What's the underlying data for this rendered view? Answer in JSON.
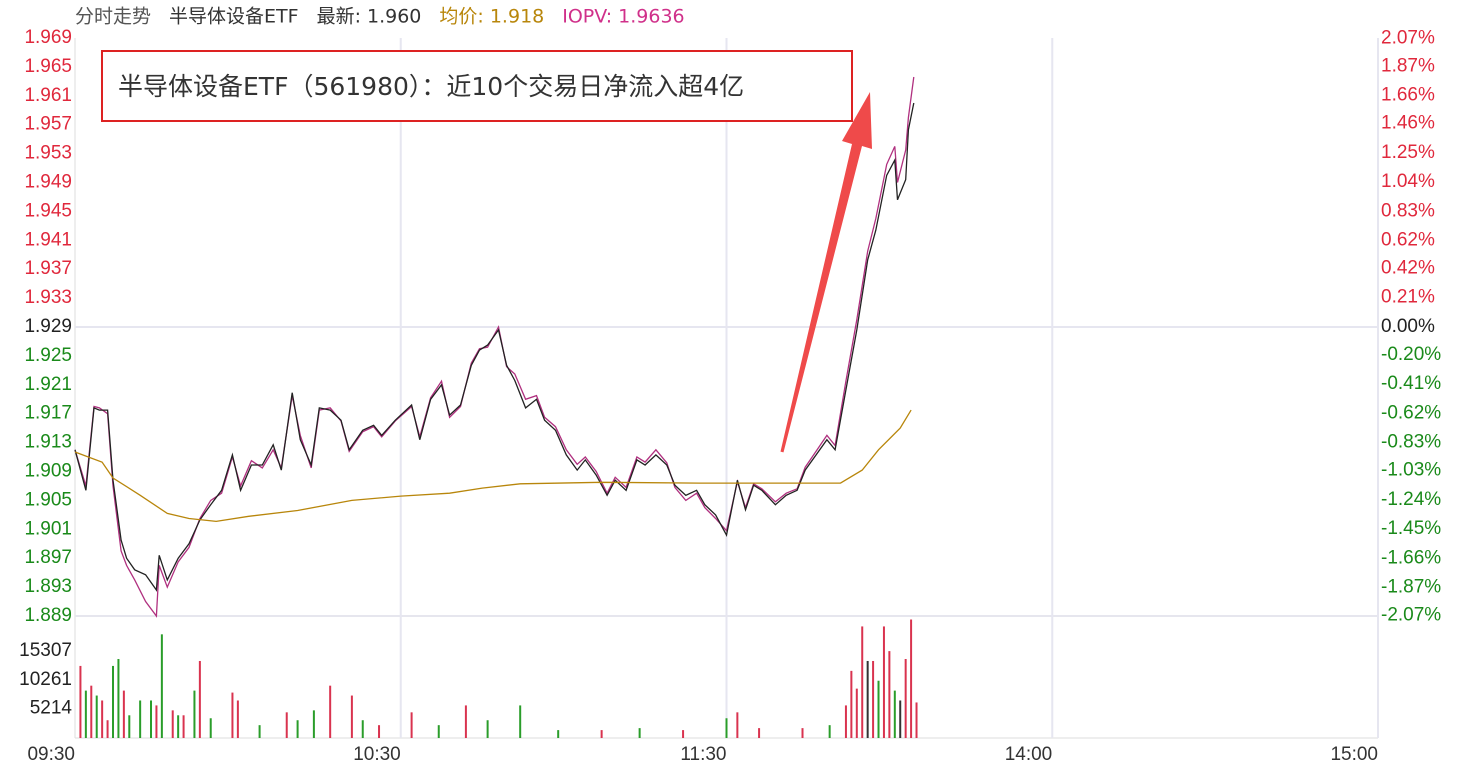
{
  "chart_data": {
    "type": "line",
    "header": [
      "分时走势",
      "半导体设备ETF",
      "最新: 1.960",
      "均价: 1.918",
      "IOPV: 1.9636"
    ],
    "header_colors": [
      "#555555",
      "#333333",
      "#333333",
      "#b8860b",
      "#d0308a"
    ],
    "annotation": "半导体设备ETF（561980）：近10个交易日净流入超4亿",
    "xlim": [
      0,
      240
    ],
    "xticks": [
      {
        "value": 0,
        "label": "09:30"
      },
      {
        "value": 60,
        "label": "10:30"
      },
      {
        "value": 120,
        "label": "11:30"
      },
      {
        "value": 180,
        "label": "14:00"
      },
      {
        "value": 240,
        "label": "15:00"
      }
    ],
    "ylim": [
      1.889,
      1.969
    ],
    "yticks": [
      1.969,
      1.965,
      1.961,
      1.957,
      1.953,
      1.949,
      1.945,
      1.941,
      1.937,
      1.933,
      1.929,
      1.925,
      1.921,
      1.917,
      1.913,
      1.909,
      1.905,
      1.901,
      1.897,
      1.893,
      1.889
    ],
    "y2lim": [
      -2.0736,
      2.0736
    ],
    "y2ticks": [
      {
        "value": 2.07,
        "label": "2.07%"
      },
      {
        "value": 1.87,
        "label": "1.87%"
      },
      {
        "value": 1.66,
        "label": "1.66%"
      },
      {
        "value": 1.46,
        "label": "1.46%"
      },
      {
        "value": 1.25,
        "label": "1.25%"
      },
      {
        "value": 1.04,
        "label": "1.04%"
      },
      {
        "value": 0.83,
        "label": "0.83%"
      },
      {
        "value": 0.62,
        "label": "0.62%"
      },
      {
        "value": 0.42,
        "label": "0.42%"
      },
      {
        "value": 0.21,
        "label": "0.21%"
      },
      {
        "value": 0,
        "label": "0.00%"
      },
      {
        "value": -0.2,
        "label": "-0.20%"
      },
      {
        "value": -0.41,
        "label": "-0.41%"
      },
      {
        "value": -0.62,
        "label": "-0.62%"
      },
      {
        "value": -0.83,
        "label": "-0.83%"
      },
      {
        "value": -1.03,
        "label": "-1.03%"
      },
      {
        "value": -1.24,
        "label": "-1.24%"
      },
      {
        "value": -1.45,
        "label": "-1.45%"
      },
      {
        "value": -1.66,
        "label": "-1.66%"
      },
      {
        "value": -1.87,
        "label": "-1.87%"
      },
      {
        "value": -2.07,
        "label": "-2.07%"
      }
    ],
    "up_color": "#e0283c",
    "down_color": "#1a8a1a",
    "series": [
      {
        "color": "#222222",
        "x": [
          0,
          2,
          3.5,
          4.5,
          6,
          7,
          8.5,
          9.5,
          11,
          13,
          15,
          15.5,
          17,
          19,
          21,
          23,
          25,
          27,
          29,
          30.5,
          32.5,
          34.5,
          36.5,
          38,
          40,
          41.5,
          43.5,
          45,
          47,
          49,
          50.5,
          53,
          55,
          56.5,
          59,
          62,
          63.5,
          65.5,
          67.5,
          69,
          71,
          73,
          74.5,
          76,
          78,
          79.5,
          81,
          83,
          85,
          86.5,
          88.5,
          90.5,
          92.5,
          94,
          96,
          98,
          99.5,
          101.5,
          103.5,
          105,
          107,
          109,
          110.5,
          112.5,
          114.5,
          116,
          118,
          120,
          122,
          123.5,
          125,
          126.5,
          129,
          131,
          133,
          134.5,
          136.5,
          138.5,
          140,
          142,
          144,
          146,
          147.5,
          149.5,
          151,
          151.5,
          153,
          153.5,
          154.5
        ],
        "values": [
          1.912,
          1.9064,
          1.9178,
          1.9175,
          1.9175,
          1.9078,
          1.8995,
          1.897,
          1.8954,
          1.8947,
          1.8926,
          1.8974,
          1.894,
          1.897,
          1.899,
          1.9023,
          1.9044,
          1.9064,
          1.9113,
          1.9064,
          1.9099,
          1.9099,
          1.9127,
          1.9092,
          1.9199,
          1.9134,
          1.9099,
          1.9178,
          1.9175,
          1.9161,
          1.912,
          1.9147,
          1.9154,
          1.914,
          1.9161,
          1.9182,
          1.9134,
          1.919,
          1.921,
          1.9168,
          1.9182,
          1.9237,
          1.9258,
          1.9265,
          1.9286,
          1.9237,
          1.9216,
          1.9178,
          1.919,
          1.9161,
          1.9147,
          1.9113,
          1.9092,
          1.9106,
          1.9085,
          1.9057,
          1.9078,
          1.9064,
          1.9106,
          1.9099,
          1.9113,
          1.9099,
          1.9071,
          1.9057,
          1.9064,
          1.9044,
          1.903,
          1.9002,
          1.9078,
          1.9037,
          1.9071,
          1.9064,
          1.9044,
          1.9057,
          1.9064,
          1.9092,
          1.9113,
          1.9134,
          1.912,
          1.9203,
          1.9286,
          1.9383,
          1.9424,
          1.95,
          1.9521,
          1.9466,
          1.9494,
          1.9563,
          1.96
        ]
      },
      {
        "color": "#b0307f",
        "x": [
          0,
          2,
          3.5,
          4.5,
          6,
          7,
          8.5,
          9.5,
          11,
          13,
          15,
          15.5,
          17,
          19,
          21,
          23,
          25,
          27,
          29,
          30.5,
          32.5,
          34.5,
          36.5,
          38,
          40,
          41.5,
          43.5,
          45,
          47,
          49,
          50.5,
          53,
          55,
          56.5,
          59,
          62,
          63.5,
          65.5,
          67.5,
          69,
          71,
          73,
          74.5,
          76,
          78,
          79.5,
          81,
          83,
          85,
          86.5,
          88.5,
          90.5,
          92.5,
          94,
          96,
          98,
          99.5,
          101.5,
          103.5,
          105,
          107,
          109,
          110.5,
          112.5,
          114.5,
          116,
          118,
          120,
          122,
          123.5,
          125,
          126.5,
          129,
          131,
          133,
          134.5,
          136.5,
          138.5,
          140,
          142,
          144,
          146,
          147.5,
          149.5,
          151,
          151.5,
          153,
          153.5,
          154.5
        ],
        "values": [
          1.912,
          1.907,
          1.918,
          1.9178,
          1.917,
          1.907,
          1.898,
          1.896,
          1.894,
          1.891,
          1.889,
          1.896,
          1.893,
          1.8965,
          1.8985,
          1.9025,
          1.905,
          1.906,
          1.911,
          1.907,
          1.9105,
          1.9095,
          1.912,
          1.9095,
          1.9195,
          1.914,
          1.9095,
          1.9175,
          1.9178,
          1.916,
          1.9118,
          1.9145,
          1.9152,
          1.9138,
          1.916,
          1.918,
          1.9138,
          1.9192,
          1.9215,
          1.9165,
          1.918,
          1.924,
          1.926,
          1.9262,
          1.929,
          1.9235,
          1.9225,
          1.919,
          1.9195,
          1.9165,
          1.9152,
          1.912,
          1.91,
          1.911,
          1.909,
          1.906,
          1.9082,
          1.9068,
          1.911,
          1.9103,
          1.912,
          1.9102,
          1.9068,
          1.905,
          1.906,
          1.904,
          1.9025,
          1.9008,
          1.9076,
          1.904,
          1.9073,
          1.9066,
          1.9048,
          1.906,
          1.9066,
          1.9096,
          1.9118,
          1.914,
          1.9126,
          1.9215,
          1.93,
          1.9395,
          1.944,
          1.9515,
          1.954,
          1.949,
          1.9535,
          1.958,
          1.9636
        ]
      },
      {
        "color": "#b8860b",
        "x": [
          0,
          5,
          7,
          12,
          17,
          21,
          26,
          32,
          41,
          51,
          60,
          69,
          75,
          82,
          97,
          115,
          134,
          141,
          145,
          148,
          152,
          154
        ],
        "values": [
          1.9117,
          1.9103,
          1.9081,
          1.9057,
          1.9032,
          1.9025,
          1.9021,
          1.9028,
          1.9036,
          1.905,
          1.9056,
          1.906,
          1.9067,
          1.9073,
          1.9075,
          1.9074,
          1.9074,
          1.9074,
          1.9092,
          1.912,
          1.915,
          1.9175
        ]
      }
    ],
    "volume": {
      "type": "bar",
      "ylim": [
        0,
        21500
      ],
      "yticks": [
        5214,
        10261,
        15307
      ],
      "x": [
        1,
        2,
        3,
        4,
        5,
        6,
        7,
        8,
        9,
        10,
        12,
        14,
        15,
        16,
        18,
        19,
        20,
        22,
        23,
        25,
        29,
        30,
        34,
        39,
        41,
        44,
        47,
        51,
        53,
        56,
        62,
        67,
        72,
        76,
        82,
        89,
        97,
        104,
        112,
        120,
        122,
        126,
        134,
        139,
        142,
        143,
        144,
        145,
        146,
        147,
        148,
        149,
        150,
        151,
        152,
        153,
        154,
        155
      ],
      "values": [
        12702,
        8352,
        9222,
        7482,
        6612,
        3132,
        12702,
        13920,
        8352,
        4002,
        6612,
        6612,
        5742,
        18270,
        4872,
        4002,
        4002,
        8352,
        13572,
        3480,
        8004,
        6612,
        2262,
        4524,
        3132,
        4872,
        9222,
        7482,
        3132,
        2262,
        4524,
        2262,
        5742,
        3132,
        5742,
        1392,
        1392,
        1740,
        1392,
        3480,
        4524,
        1740,
        1740,
        2262,
        5742,
        11832,
        8700,
        19662,
        13572,
        13572,
        10092,
        19662,
        15312,
        8352,
        6612,
        13920,
        20880,
        6264
      ],
      "colors": [
        "#d9334f",
        "#2a9d2a",
        "#d9334f",
        "#2a9d2a",
        "#d9334f",
        "#d9334f",
        "#2a9d2a",
        "#2a9d2a",
        "#d9334f",
        "#2a9d2a",
        "#2a9d2a",
        "#2a9d2a",
        "#d9334f",
        "#2a9d2a",
        "#d9334f",
        "#2a9d2a",
        "#d9334f",
        "#2a9d2a",
        "#d9334f",
        "#2a9d2a",
        "#d9334f",
        "#d9334f",
        "#2a9d2a",
        "#d9334f",
        "#2a9d2a",
        "#2a9d2a",
        "#d9334f",
        "#d9334f",
        "#2a9d2a",
        "#d9334f",
        "#d9334f",
        "#2a9d2a",
        "#d9334f",
        "#2a9d2a",
        "#2a9d2a",
        "#2a9d2a",
        "#d9334f",
        "#2a9d2a",
        "#d9334f",
        "#2a9d2a",
        "#d9334f",
        "#d9334f",
        "#d9334f",
        "#2a9d2a",
        "#d9334f",
        "#d9334f",
        "#d9334f",
        "#d9334f",
        "#333333",
        "#d9334f",
        "#2a9d2a",
        "#d9334f",
        "#d9334f",
        "#2a9d2a",
        "#333333",
        "#d9334f",
        "#d9334f",
        "#d9334f"
      ]
    }
  }
}
